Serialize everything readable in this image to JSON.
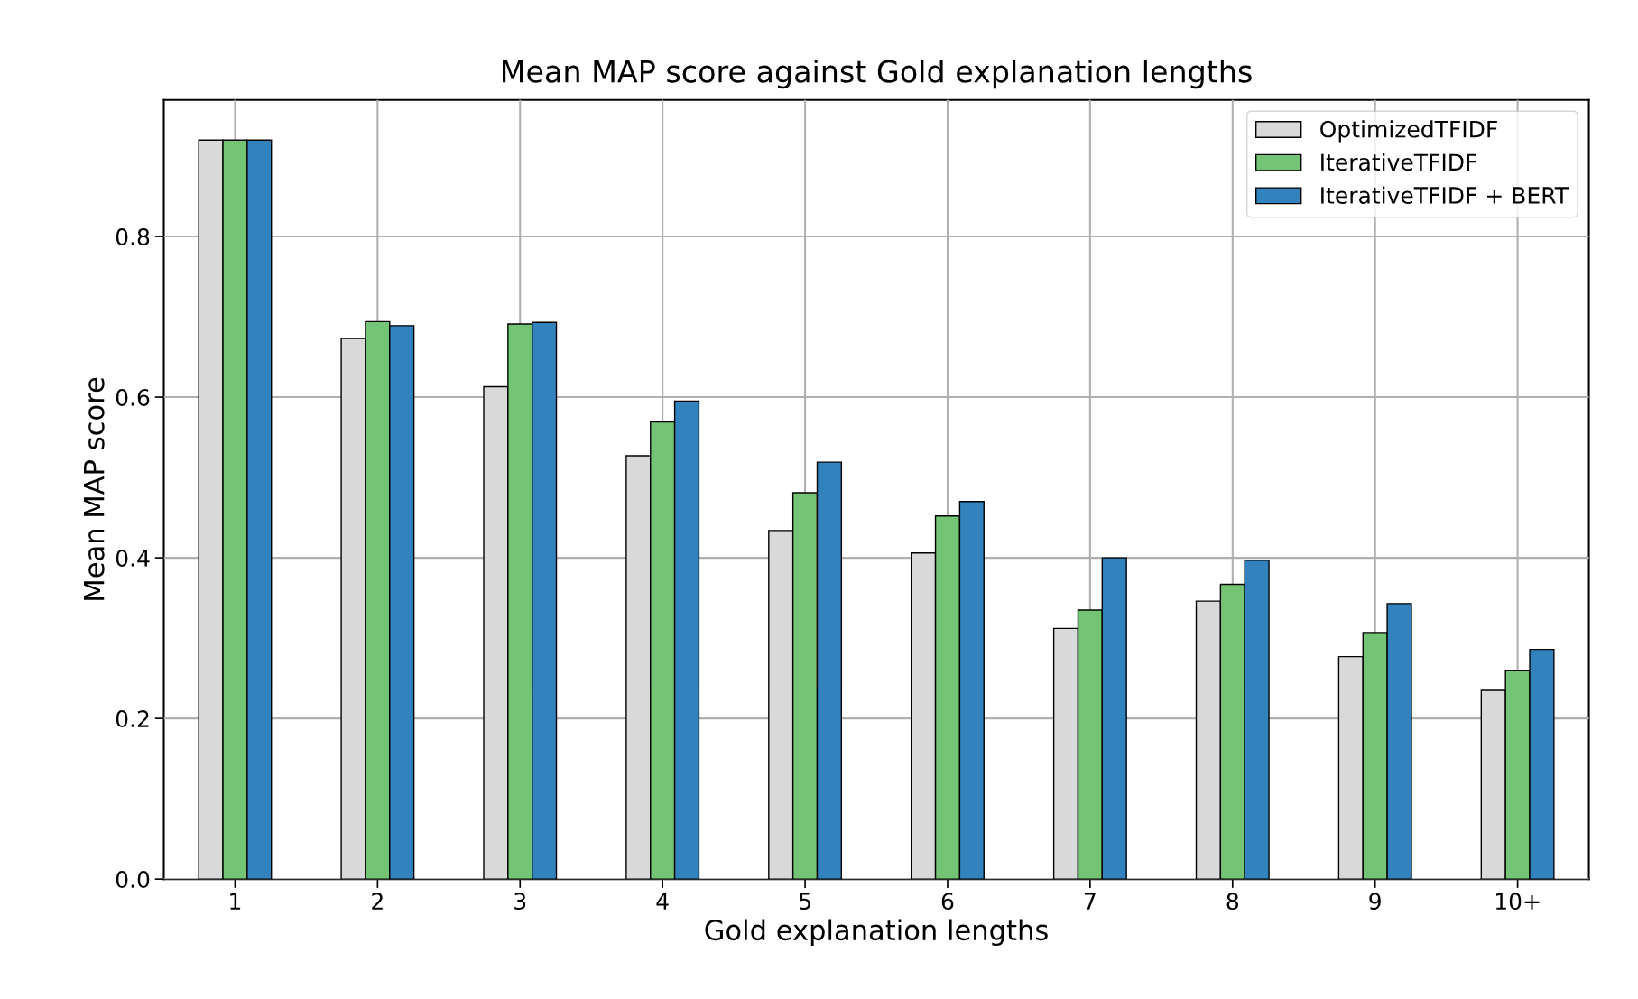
{
  "chart_data": {
    "type": "bar",
    "title": "Mean MAP score against Gold explanation lengths",
    "xlabel": "Gold explanation lengths",
    "ylabel": "Mean MAP score",
    "categories": [
      "1",
      "2",
      "3",
      "4",
      "5",
      "6",
      "7",
      "8",
      "9",
      "10+"
    ],
    "series": [
      {
        "name": "OptimizedTFIDF",
        "color": "#d9d9d9",
        "values": [
          0.92,
          0.673,
          0.613,
          0.527,
          0.434,
          0.406,
          0.312,
          0.346,
          0.277,
          0.235
        ]
      },
      {
        "name": "IterativeTFIDF",
        "color": "#74c476",
        "values": [
          0.92,
          0.694,
          0.691,
          0.569,
          0.481,
          0.452,
          0.335,
          0.367,
          0.307,
          0.26
        ]
      },
      {
        "name": "IterativeTFIDF + BERT",
        "color": "#3182bd",
        "values": [
          0.92,
          0.689,
          0.693,
          0.595,
          0.519,
          0.47,
          0.4,
          0.397,
          0.343,
          0.286
        ]
      }
    ],
    "ylim": [
      0,
      0.97
    ],
    "yticks": [
      {
        "value": 0,
        "label": "0.0"
      },
      0.2,
      0.4,
      0.6,
      0.8
    ],
    "grid": true,
    "legend": "top right"
  }
}
